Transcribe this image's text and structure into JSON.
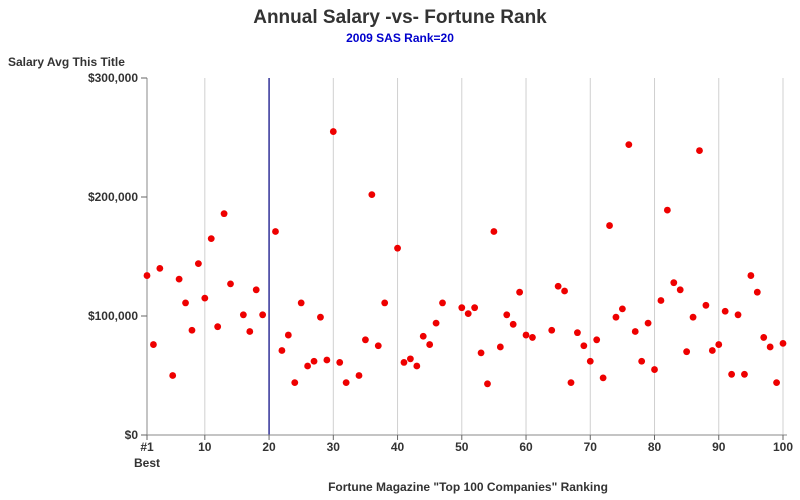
{
  "chart_data": {
    "type": "scatter",
    "title": "Annual Salary -vs- Fortune Rank",
    "subtitle": "2009 SAS Rank=20",
    "xlabel": "Fortune Magazine \"Top 100 Companies\" Ranking",
    "ylabel": "Salary Avg This Title",
    "xlim": [
      1,
      100
    ],
    "ylim": [
      0,
      300000
    ],
    "x_ticks": [
      {
        "value": 1,
        "label": "#1",
        "sublabel": "Best"
      },
      {
        "value": 10,
        "label": "10"
      },
      {
        "value": 20,
        "label": "20"
      },
      {
        "value": 30,
        "label": "30"
      },
      {
        "value": 40,
        "label": "40"
      },
      {
        "value": 50,
        "label": "50"
      },
      {
        "value": 60,
        "label": "60"
      },
      {
        "value": 70,
        "label": "70"
      },
      {
        "value": 80,
        "label": "80"
      },
      {
        "value": 90,
        "label": "90"
      },
      {
        "value": 100,
        "label": "100"
      }
    ],
    "y_ticks": [
      {
        "value": 0,
        "label": "$0"
      },
      {
        "value": 100000,
        "label": "$100,000"
      },
      {
        "value": 200000,
        "label": "$200,000"
      },
      {
        "value": 300000,
        "label": "$300,000"
      }
    ],
    "grid": "vertical",
    "reference_line": {
      "x": 20,
      "color": "#000080"
    },
    "point_color": "#ee0000",
    "points": [
      [
        1,
        134000
      ],
      [
        2,
        76000
      ],
      [
        3,
        140000
      ],
      [
        5,
        50000
      ],
      [
        6,
        131000
      ],
      [
        7,
        111000
      ],
      [
        8,
        88000
      ],
      [
        9,
        144000
      ],
      [
        10,
        115000
      ],
      [
        11,
        165000
      ],
      [
        12,
        91000
      ],
      [
        13,
        186000
      ],
      [
        14,
        127000
      ],
      [
        16,
        101000
      ],
      [
        17,
        87000
      ],
      [
        18,
        122000
      ],
      [
        19,
        101000
      ],
      [
        21,
        171000
      ],
      [
        22,
        71000
      ],
      [
        23,
        84000
      ],
      [
        24,
        44000
      ],
      [
        25,
        111000
      ],
      [
        26,
        58000
      ],
      [
        27,
        62000
      ],
      [
        28,
        99000
      ],
      [
        29,
        63000
      ],
      [
        30,
        255000
      ],
      [
        31,
        61000
      ],
      [
        32,
        44000
      ],
      [
        34,
        50000
      ],
      [
        35,
        80000
      ],
      [
        36,
        202000
      ],
      [
        37,
        75000
      ],
      [
        38,
        111000
      ],
      [
        40,
        157000
      ],
      [
        41,
        61000
      ],
      [
        42,
        64000
      ],
      [
        43,
        58000
      ],
      [
        44,
        83000
      ],
      [
        45,
        76000
      ],
      [
        46,
        94000
      ],
      [
        47,
        111000
      ],
      [
        50,
        107000
      ],
      [
        51,
        102000
      ],
      [
        52,
        107000
      ],
      [
        53,
        69000
      ],
      [
        54,
        43000
      ],
      [
        55,
        171000
      ],
      [
        56,
        74000
      ],
      [
        57,
        101000
      ],
      [
        58,
        93000
      ],
      [
        59,
        120000
      ],
      [
        60,
        84000
      ],
      [
        61,
        82000
      ],
      [
        64,
        88000
      ],
      [
        65,
        125000
      ],
      [
        66,
        121000
      ],
      [
        67,
        44000
      ],
      [
        68,
        86000
      ],
      [
        69,
        75000
      ],
      [
        70,
        62000
      ],
      [
        71,
        80000
      ],
      [
        72,
        48000
      ],
      [
        73,
        176000
      ],
      [
        74,
        99000
      ],
      [
        75,
        106000
      ],
      [
        76,
        244000
      ],
      [
        77,
        87000
      ],
      [
        78,
        62000
      ],
      [
        79,
        94000
      ],
      [
        80,
        55000
      ],
      [
        81,
        113000
      ],
      [
        82,
        189000
      ],
      [
        83,
        128000
      ],
      [
        84,
        122000
      ],
      [
        85,
        70000
      ],
      [
        86,
        99000
      ],
      [
        87,
        239000
      ],
      [
        88,
        109000
      ],
      [
        89,
        71000
      ],
      [
        90,
        76000
      ],
      [
        91,
        104000
      ],
      [
        92,
        51000
      ],
      [
        93,
        101000
      ],
      [
        94,
        51000
      ],
      [
        95,
        134000
      ],
      [
        96,
        120000
      ],
      [
        97,
        82000
      ],
      [
        98,
        74000
      ],
      [
        99,
        44000
      ],
      [
        100,
        77000
      ]
    ]
  }
}
